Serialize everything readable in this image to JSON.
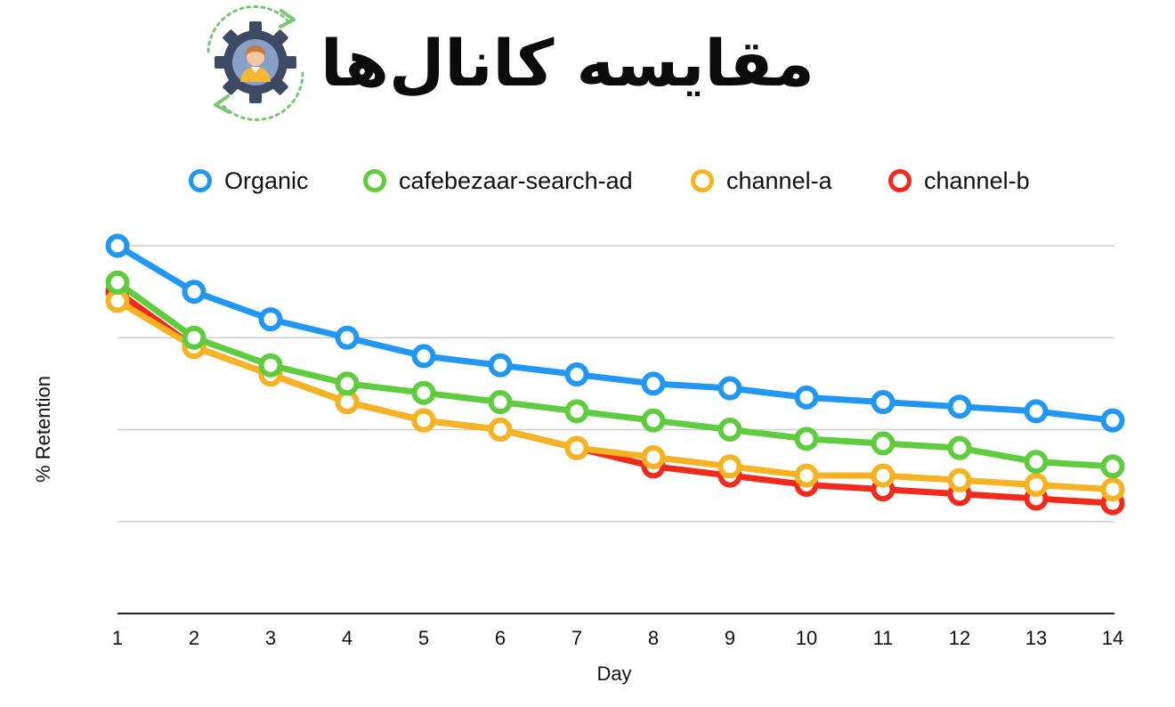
{
  "header": {
    "title": "مقایسه کانال‌ها",
    "logo_icon": "gear-user-refresh-icon"
  },
  "chart_data": {
    "type": "line",
    "title": "",
    "xlabel": "Day",
    "ylabel": "%  Retention",
    "x": [
      1,
      2,
      3,
      4,
      5,
      6,
      7,
      8,
      9,
      10,
      11,
      12,
      13,
      14
    ],
    "ylim": [
      0,
      100
    ],
    "y_ticks_labeled": false,
    "grid": true,
    "legend_position": "top",
    "series": [
      {
        "name": "Organic",
        "color": "#2196f3",
        "values": [
          80,
          70,
          64,
          60,
          56,
          54,
          52,
          50,
          49,
          47,
          46,
          45,
          44,
          42
        ]
      },
      {
        "name": "cafebezaar-search-ad",
        "color": "#5fcc3f",
        "values": [
          72,
          60,
          54,
          50,
          48,
          46,
          44,
          42,
          40,
          38,
          37,
          36,
          33,
          32
        ]
      },
      {
        "name": "channel-a",
        "color": "#f5b324",
        "values": [
          68,
          58,
          52,
          46,
          42,
          40,
          36,
          34,
          32,
          30,
          30,
          29,
          28,
          27
        ]
      },
      {
        "name": "channel-b",
        "color": "#f02b1d",
        "values": [
          70,
          58,
          52,
          46,
          42,
          40,
          36,
          32,
          30,
          28,
          27,
          26,
          25,
          24
        ]
      }
    ]
  }
}
